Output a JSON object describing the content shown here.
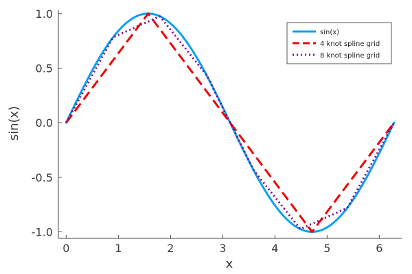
{
  "chart_data": {
    "type": "line",
    "xlabel": "x",
    "ylabel": "sin(x)",
    "xlim": [
      -0.15,
      6.43
    ],
    "ylim": [
      -1.06,
      1.03
    ],
    "x_ticks": [
      0,
      1,
      2,
      3,
      4,
      5,
      6
    ],
    "x_tick_labels": [
      "0",
      "1",
      "2",
      "3",
      "4",
      "5",
      "6"
    ],
    "y_ticks": [
      -1.0,
      -0.5,
      0.0,
      0.5,
      1.0
    ],
    "y_tick_labels": [
      "-1.0",
      "-0.5",
      "0.0",
      "0.5",
      "1.0"
    ],
    "grid": false,
    "legend_position": "top-right",
    "series": [
      {
        "name": "sin(x)",
        "style": "solid",
        "color": "#0aa0f0",
        "x": [
          0,
          0.2618,
          0.5236,
          0.7854,
          1.0472,
          1.309,
          1.5708,
          1.8326,
          2.0944,
          2.3562,
          2.618,
          2.8798,
          3.1416,
          3.4034,
          3.6652,
          3.927,
          4.1888,
          4.4506,
          4.7124,
          4.9742,
          5.236,
          5.4978,
          5.7596,
          6.0214,
          6.2832
        ],
        "y": [
          0,
          0.2588,
          0.5,
          0.7071,
          0.866,
          0.9659,
          1.0,
          0.9659,
          0.866,
          0.7071,
          0.5,
          0.2588,
          0,
          -0.2588,
          -0.5,
          -0.7071,
          -0.866,
          -0.9659,
          -1.0,
          -0.9659,
          -0.866,
          -0.7071,
          -0.5,
          -0.2588,
          0
        ]
      },
      {
        "name": "4 knot spline grid",
        "style": "dashed",
        "color": "#f00000",
        "x": [
          0,
          1.5708,
          4.7124,
          6.2832
        ],
        "y": [
          0,
          1.0,
          -1.0,
          0
        ]
      },
      {
        "name": "8 knot spline grid",
        "style": "dotted",
        "color": "#80008a",
        "x": [
          0,
          0.8976,
          1.7952,
          2.6928,
          3.5904,
          4.488,
          5.3856,
          6.2832
        ],
        "y": [
          0,
          0.7818,
          0.9749,
          0.4339,
          -0.4339,
          -0.9749,
          -0.7818,
          0
        ]
      }
    ]
  }
}
